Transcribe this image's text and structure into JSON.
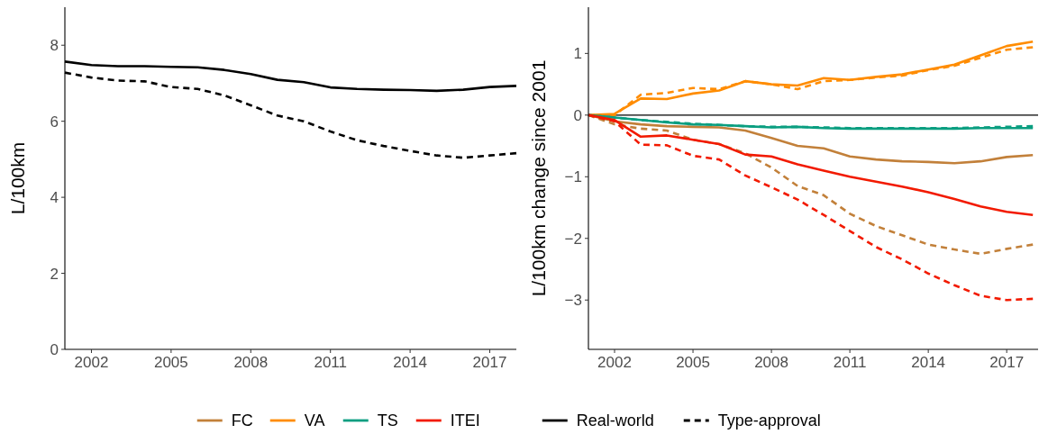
{
  "chart_data": [
    {
      "type": "line",
      "ylabel": "L/100km",
      "x": [
        2001,
        2002,
        2003,
        2004,
        2005,
        2006,
        2007,
        2008,
        2009,
        2010,
        2011,
        2012,
        2013,
        2014,
        2015,
        2016,
        2017,
        2018
      ],
      "xlim": [
        2001,
        2018
      ],
      "xticks": [
        2002,
        2005,
        2008,
        2011,
        2014,
        2017
      ],
      "ylim": [
        0,
        9
      ],
      "yticks": [
        0,
        2,
        4,
        6,
        8
      ],
      "grid": false,
      "legend": "bottom",
      "series": [
        {
          "name": "Real-world",
          "color": "#000000",
          "line_style": "solid",
          "values": [
            7.57,
            7.48,
            7.45,
            7.45,
            7.43,
            7.42,
            7.35,
            7.24,
            7.09,
            7.03,
            6.89,
            6.85,
            6.83,
            6.82,
            6.8,
            6.83,
            6.9,
            6.93
          ]
        },
        {
          "name": "Type-approval",
          "color": "#000000",
          "line_style": "dashed",
          "values": [
            7.28,
            7.15,
            7.07,
            7.05,
            6.9,
            6.85,
            6.68,
            6.42,
            6.15,
            6.0,
            5.73,
            5.5,
            5.35,
            5.22,
            5.1,
            5.04,
            5.1,
            5.16
          ]
        }
      ]
    },
    {
      "type": "line",
      "ylabel": "L/100km change since 2001",
      "x": [
        2001,
        2002,
        2003,
        2004,
        2005,
        2006,
        2007,
        2008,
        2009,
        2010,
        2011,
        2012,
        2013,
        2014,
        2015,
        2016,
        2017,
        2018
      ],
      "xlim": [
        2001,
        2018.2
      ],
      "xticks": [
        2002,
        2005,
        2008,
        2011,
        2014,
        2017
      ],
      "ylim": [
        -3.8,
        1.75
      ],
      "yticks": [
        -3,
        -2,
        -1,
        0,
        1
      ],
      "grid": false,
      "legend": "bottom",
      "ref_lines": [
        {
          "axis": "y",
          "value": 0,
          "color": "#000000"
        }
      ],
      "series": [
        {
          "name": "FC",
          "color": "#c2803a",
          "line_style": "solid",
          "values": [
            0,
            -0.1,
            -0.15,
            -0.18,
            -0.19,
            -0.2,
            -0.25,
            -0.37,
            -0.5,
            -0.54,
            -0.67,
            -0.72,
            -0.75,
            -0.76,
            -0.78,
            -0.75,
            -0.68,
            -0.65
          ]
        },
        {
          "color": "#c2803a",
          "line_style": "dashed",
          "values": [
            0,
            -0.15,
            -0.22,
            -0.25,
            -0.4,
            -0.47,
            -0.62,
            -0.85,
            -1.15,
            -1.3,
            -1.6,
            -1.8,
            -1.95,
            -2.1,
            -2.18,
            -2.25,
            -2.17,
            -2.1
          ]
        },
        {
          "name": "VA",
          "color": "#ff8c00",
          "line_style": "solid",
          "values": [
            0,
            0.02,
            0.27,
            0.26,
            0.35,
            0.4,
            0.55,
            0.5,
            0.48,
            0.6,
            0.57,
            0.62,
            0.66,
            0.74,
            0.82,
            0.97,
            1.12,
            1.19
          ]
        },
        {
          "color": "#ff8c00",
          "line_style": "dashed",
          "values": [
            0,
            0,
            0.33,
            0.36,
            0.44,
            0.42,
            0.55,
            0.5,
            0.42,
            0.55,
            0.57,
            0.61,
            0.64,
            0.73,
            0.8,
            0.93,
            1.06,
            1.1
          ]
        },
        {
          "name": "TS",
          "color": "#0a9e80",
          "line_style": "solid",
          "values": [
            0,
            -0.04,
            -0.08,
            -0.12,
            -0.15,
            -0.16,
            -0.18,
            -0.2,
            -0.19,
            -0.21,
            -0.22,
            -0.22,
            -0.22,
            -0.22,
            -0.22,
            -0.21,
            -0.21,
            -0.21
          ]
        },
        {
          "color": "#0a9e80",
          "line_style": "dashed",
          "values": [
            0,
            -0.04,
            -0.08,
            -0.11,
            -0.14,
            -0.16,
            -0.18,
            -0.19,
            -0.19,
            -0.2,
            -0.21,
            -0.21,
            -0.21,
            -0.21,
            -0.21,
            -0.2,
            -0.19,
            -0.18
          ]
        },
        {
          "name": "ITEI",
          "color": "#f21a00",
          "line_style": "solid",
          "values": [
            0,
            -0.08,
            -0.35,
            -0.33,
            -0.4,
            -0.47,
            -0.64,
            -0.67,
            -0.8,
            -0.9,
            -1.0,
            -1.08,
            -1.16,
            -1.25,
            -1.36,
            -1.48,
            -1.57,
            -1.62
          ]
        },
        {
          "color": "#f21a00",
          "line_style": "dashed",
          "values": [
            0,
            -0.1,
            -0.48,
            -0.49,
            -0.66,
            -0.72,
            -0.98,
            -1.17,
            -1.37,
            -1.62,
            -1.88,
            -2.14,
            -2.34,
            -2.57,
            -2.76,
            -2.93,
            -3.0,
            -2.98
          ]
        }
      ]
    }
  ]
}
